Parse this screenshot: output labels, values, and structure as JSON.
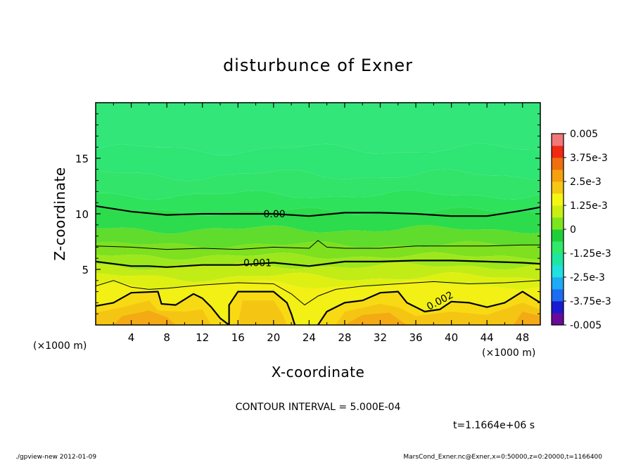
{
  "chart_data": {
    "type": "heatmap",
    "title": "disturbunce of Exner",
    "xlabel": "X-coordinate",
    "ylabel": "Z-coordinate",
    "x_unit": "(×1000 m)",
    "y_unit": "(×1000 m)",
    "xlim": [
      0,
      50
    ],
    "ylim": [
      0,
      20
    ],
    "x_ticks": [
      "4",
      "8",
      "12",
      "16",
      "20",
      "24",
      "28",
      "32",
      "36",
      "40",
      "44",
      "48"
    ],
    "y_ticks": [
      "5",
      "10",
      "15"
    ],
    "contour_interval_text": "CONTOUR INTERVAL = 5.000E-04",
    "time_text": "t=1.1664e+06 s",
    "colorbar": {
      "labels": [
        "0.005",
        "3.75e-3",
        "2.5e-3",
        "1.25e-3",
        "0",
        "-1.25e-3",
        "-2.5e-3",
        "-3.75e-3",
        "-0.005"
      ],
      "vmin": -0.005,
      "vmax": 0.005,
      "colors": [
        "#6a0a9a",
        "#1a1ad0",
        "#1e6cf0",
        "#1eaaf5",
        "#20e0e0",
        "#1ee6a0",
        "#2ee96a",
        "#1fcf3a",
        "#7be61e",
        "#c8ee14",
        "#f5f514",
        "#f5c814",
        "#f5a00f",
        "#f06e0f",
        "#f02814",
        "#f07878"
      ]
    },
    "fill_colors": {
      "z19": "#32e67a",
      "z17": "#2fe574",
      "z14": "#33e46a",
      "z12": "#2ee25c",
      "z10": "#2cdc4c",
      "z8": "#5fdc2c",
      "z7": "#7ee01e",
      "z6": "#9de81c",
      "z5": "#c2ec16",
      "z4": "#def012",
      "z3": "#f2f014",
      "z2": "#f7da14",
      "z1": "#f5c514",
      "z0": "#f4aa14"
    },
    "contour_labels": [
      {
        "text": "0.00",
        "x": 20.1,
        "z": 10.0
      },
      {
        "text": "0.001",
        "x": 18.2,
        "z": 5.6
      },
      {
        "text": "0.002",
        "x": 38.7,
        "z": 2.2
      }
    ],
    "contours": [
      {
        "level": 0.0,
        "points": [
          [
            0,
            10.7
          ],
          [
            4,
            10.2
          ],
          [
            8,
            9.9
          ],
          [
            12,
            10.0
          ],
          [
            16,
            10.0
          ],
          [
            20,
            10.0
          ],
          [
            24,
            9.8
          ],
          [
            28,
            10.1
          ],
          [
            32,
            10.1
          ],
          [
            36,
            10.0
          ],
          [
            40,
            9.8
          ],
          [
            44,
            9.8
          ],
          [
            48,
            10.3
          ],
          [
            50,
            10.6
          ]
        ]
      },
      {
        "level": 0.0005,
        "points": [
          [
            0,
            7.1
          ],
          [
            4,
            7.0
          ],
          [
            8,
            6.8
          ],
          [
            12,
            6.9
          ],
          [
            16,
            6.8
          ],
          [
            20,
            7.0
          ],
          [
            24,
            6.9
          ],
          [
            25,
            7.6
          ],
          [
            26,
            7.0
          ],
          [
            28,
            6.9
          ],
          [
            32,
            6.9
          ],
          [
            36,
            7.1
          ],
          [
            40,
            7.1
          ],
          [
            44,
            7.1
          ],
          [
            48,
            7.2
          ],
          [
            50,
            7.2
          ]
        ]
      },
      {
        "level": 0.001,
        "points": [
          [
            0,
            5.7
          ],
          [
            4,
            5.3
          ],
          [
            6,
            5.3
          ],
          [
            8,
            5.2
          ],
          [
            12,
            5.4
          ],
          [
            16,
            5.4
          ],
          [
            20,
            5.6
          ],
          [
            24,
            5.3
          ],
          [
            28,
            5.7
          ],
          [
            32,
            5.7
          ],
          [
            36,
            5.8
          ],
          [
            40,
            5.8
          ],
          [
            44,
            5.7
          ],
          [
            48,
            5.6
          ],
          [
            50,
            5.5
          ]
        ]
      },
      {
        "level": 0.0015,
        "points": [
          [
            0,
            3.5
          ],
          [
            2,
            4.0
          ],
          [
            4,
            3.4
          ],
          [
            6,
            3.2
          ],
          [
            8,
            3.3
          ],
          [
            12,
            3.6
          ],
          [
            16,
            3.8
          ],
          [
            20,
            3.7
          ],
          [
            22,
            2.8
          ],
          [
            23.5,
            1.8
          ],
          [
            25,
            2.6
          ],
          [
            27,
            3.2
          ],
          [
            30,
            3.5
          ],
          [
            34,
            3.7
          ],
          [
            38,
            3.9
          ],
          [
            42,
            3.7
          ],
          [
            46,
            3.8
          ],
          [
            50,
            4.0
          ]
        ]
      },
      {
        "level": 0.002,
        "points": [
          [
            0,
            1.7
          ],
          [
            2,
            2.0
          ],
          [
            4,
            2.9
          ],
          [
            7,
            3.0
          ],
          [
            7.4,
            1.9
          ],
          [
            9,
            1.8
          ],
          [
            11,
            2.8
          ],
          [
            12,
            2.4
          ],
          [
            13,
            1.6
          ],
          [
            14,
            0.6
          ],
          [
            15,
            0
          ],
          [
            15,
            1.8
          ],
          [
            16,
            3.0
          ],
          [
            20,
            3.0
          ],
          [
            21.5,
            2.0
          ],
          [
            22,
            1.0
          ],
          [
            22.4,
            0
          ]
        ]
      },
      {
        "level": 0.002,
        "points": [
          [
            25,
            0
          ],
          [
            26,
            1.2
          ],
          [
            28,
            2.0
          ],
          [
            30,
            2.2
          ],
          [
            32,
            2.9
          ],
          [
            34,
            3.0
          ],
          [
            35,
            2.0
          ],
          [
            37,
            1.2
          ],
          [
            38.7,
            1.4
          ],
          [
            40,
            2.1
          ],
          [
            42,
            2.0
          ],
          [
            44,
            1.6
          ],
          [
            46,
            2.0
          ],
          [
            48,
            3.0
          ],
          [
            50,
            2.0
          ]
        ]
      }
    ]
  },
  "footer": {
    "left": "./gpview-new   2012-01-09",
    "right": "MarsCond_Exner.nc@Exner,x=0:50000,z=0:20000,t=1166400"
  }
}
